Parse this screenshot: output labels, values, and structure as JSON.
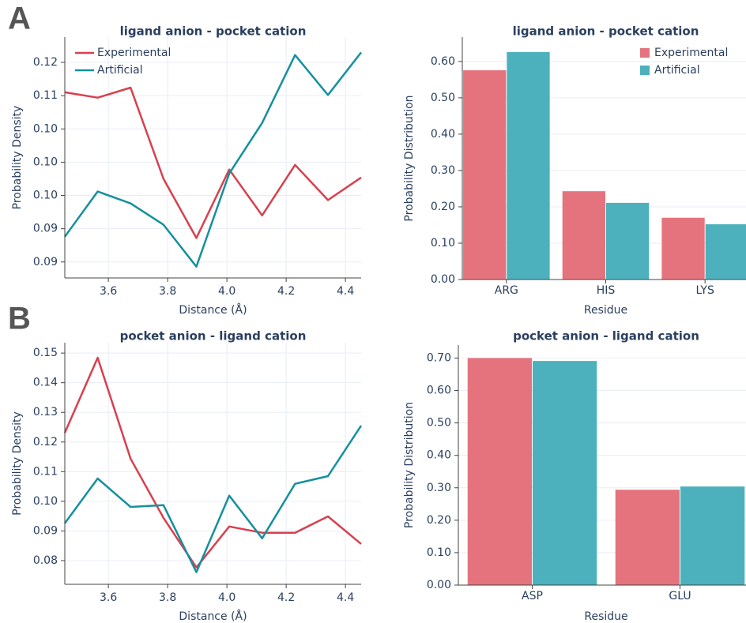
{
  "panel_labels": [
    "A",
    "B"
  ],
  "chart_data": [
    {
      "type": "line",
      "title": "ligand anion - pocket cation",
      "x_label": "Distance (Å)",
      "y_label": "Probability Density",
      "x": [
        3.453,
        3.564,
        3.675,
        3.786,
        3.897,
        4.008,
        4.119,
        4.23,
        4.341,
        4.453
      ],
      "series": [
        {
          "name": "Experimental",
          "color": "#d8404e",
          "values": [
            0.1105,
            0.1097,
            0.1112,
            0.0975,
            0.0886,
            0.0989,
            0.092,
            0.0996,
            0.0943,
            0.0977
          ]
        },
        {
          "name": "Artificial",
          "color": "#15909c",
          "values": [
            0.0888,
            0.0956,
            0.0938,
            0.0906,
            0.0843,
            0.0983,
            0.1059,
            0.1161,
            0.1101,
            0.1165
          ]
        }
      ],
      "xlim": [
        3.453,
        4.453
      ],
      "xticks": [
        3.6,
        3.8,
        {
          "value": 4,
          "label": "4.0"
        },
        4.2,
        4.4
      ],
      "ylim": [
        0.0826,
        0.1188
      ],
      "yticks": [
        {
          "value": 0.115,
          "label": "0.12"
        },
        {
          "value": 0.11,
          "label": "0.11"
        },
        {
          "value": 0.105,
          "label": "0.10"
        },
        {
          "value": 0.1,
          "label": "0.10"
        },
        {
          "value": 0.095,
          "label": "0.10"
        },
        {
          "value": 0.09,
          "label": "0.09"
        },
        {
          "value": 0.085,
          "label": "0.09"
        }
      ],
      "grid": true,
      "legend": "upper left"
    },
    {
      "type": "bar",
      "title": "ligand anion - pocket cation",
      "x_label": "Residue",
      "y_label": "Probability Distribution",
      "categories": [
        "ARG",
        "HIS",
        "LYS"
      ],
      "series": [
        {
          "name": "Experimental",
          "color": "#e5737d",
          "values": [
            0.576,
            0.243,
            0.17
          ]
        },
        {
          "name": "Artificial",
          "color": "#4cb1bc",
          "values": [
            0.626,
            0.211,
            0.152
          ]
        }
      ],
      "ylim": [
        0,
        0.667
      ],
      "yticks": [
        {
          "value": 0,
          "label": "0.00"
        },
        {
          "value": 0.1,
          "label": "0.10"
        },
        {
          "value": 0.2,
          "label": "0.20"
        },
        {
          "value": 0.3,
          "label": "0.30"
        },
        {
          "value": 0.4,
          "label": "0.40"
        },
        {
          "value": 0.5,
          "label": "0.50"
        },
        {
          "value": 0.6,
          "label": "0.60"
        }
      ],
      "grid": true,
      "legend": "upper right"
    },
    {
      "type": "line",
      "title": "pocket anion - ligand cation",
      "x_label": "Distance (Å)",
      "y_label": "Probability Density",
      "x": [
        3.453,
        3.564,
        3.675,
        3.786,
        3.897,
        4.008,
        4.119,
        4.23,
        4.341,
        4.453
      ],
      "series": [
        {
          "name": "Experimental",
          "color": "#d8404e",
          "values": [
            0.1231,
            0.1484,
            0.1144,
            0.0944,
            0.0777,
            0.0915,
            0.0894,
            0.0894,
            0.0949,
            0.0856
          ]
        },
        {
          "name": "Artificial",
          "color": "#15909c",
          "values": [
            0.0926,
            0.1077,
            0.0981,
            0.0987,
            0.0761,
            0.1019,
            0.0875,
            0.1059,
            0.1085,
            0.1255
          ]
        }
      ],
      "xlim": [
        3.453,
        4.453
      ],
      "xticks": [
        3.6,
        3.8,
        {
          "value": 4,
          "label": "4.0"
        },
        4.2,
        4.4
      ],
      "ylim": [
        0.072,
        0.1535
      ],
      "yticks": [
        0.15,
        0.14,
        0.13,
        0.12,
        0.11,
        {
          "value": 0.1,
          "label": "0.10"
        },
        0.09,
        0.08
      ],
      "grid": true
    },
    {
      "type": "bar",
      "title": "pocket anion - ligand cation",
      "x_label": "Residue",
      "y_label": "Probability Distribution",
      "categories": [
        "ASP",
        "GLU"
      ],
      "series": [
        {
          "name": "Experimental",
          "color": "#e5737d",
          "values": [
            0.7,
            0.294
          ]
        },
        {
          "name": "Artificial",
          "color": "#4cb1bc",
          "values": [
            0.691,
            0.304
          ]
        }
      ],
      "ylim": [
        0,
        0.74
      ],
      "yticks": [
        {
          "value": 0,
          "label": "0.00"
        },
        {
          "value": 0.1,
          "label": "0.10"
        },
        {
          "value": 0.2,
          "label": "0.20"
        },
        {
          "value": 0.3,
          "label": "0.30"
        },
        {
          "value": 0.4,
          "label": "0.40"
        },
        {
          "value": 0.5,
          "label": "0.50"
        },
        {
          "value": 0.6,
          "label": "0.60"
        },
        {
          "value": 0.7,
          "label": "0.70"
        }
      ],
      "grid": true
    }
  ]
}
